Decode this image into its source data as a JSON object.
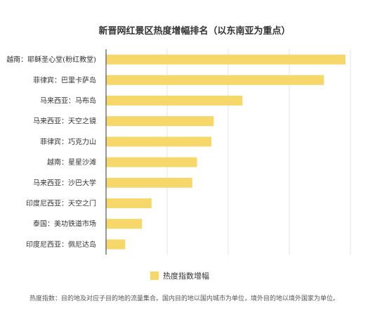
{
  "chart_data": {
    "type": "bar",
    "orientation": "horizontal",
    "title": "新晋网红景区热度增幅排名（以东南亚为重点）",
    "categories": [
      "越南：耶稣圣心堂(粉红教堂)",
      "菲律宾：巴里卡萨岛",
      "马来西亚：马布岛",
      "马来西亚：天空之镜",
      "菲律宾：巧克力山",
      "越南：星星沙滩",
      "马来西亚：沙巴大学",
      "印度尼西亚：天空之门",
      "泰国：美功铁道市场",
      "印度尼西亚：佩尼达岛"
    ],
    "series": [
      {
        "name": "热度指数增幅",
        "values": [
          100,
          91,
          57,
          45,
          44,
          38,
          36,
          19,
          15,
          8
        ]
      }
    ],
    "xlim": [
      0,
      100
    ],
    "grid": true,
    "legend_position": "bottom-center",
    "bar_color": "#f5d76a",
    "footnote": "热度指数：目的地及对应子目的地的流量集合。国内目的地以国内城市为单位，境外目的地以境外国家为单位。"
  }
}
